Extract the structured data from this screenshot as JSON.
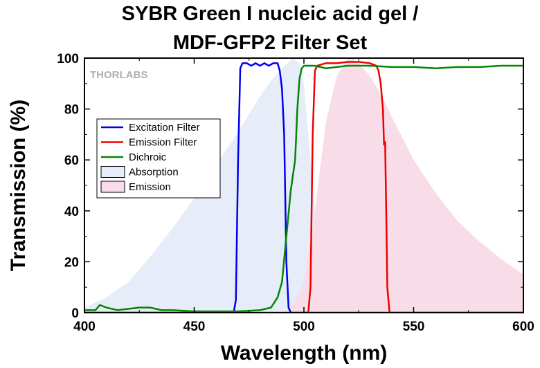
{
  "chart_data": {
    "type": "line",
    "title_line1": "SYBR Green I nucleic acid gel /",
    "title_line2": "MDF-GFP2 Filter Set",
    "xlabel": "Wavelength (nm)",
    "ylabel": "Transmission (%)",
    "xlim": [
      400,
      600
    ],
    "ylim": [
      0,
      100
    ],
    "xticks": [
      400,
      450,
      500,
      550,
      600
    ],
    "yticks": [
      0,
      20,
      40,
      60,
      80,
      100
    ],
    "logo": "THORLABS",
    "legend_position": "left",
    "series": [
      {
        "name": "Excitation Filter",
        "kind": "line",
        "color": "#0000ee",
        "x": [
          400,
          468,
          469,
          470,
          471,
          472,
          474,
          476,
          478,
          480,
          482,
          484,
          486,
          488,
          489,
          490,
          491,
          492,
          493,
          494,
          600
        ],
        "y": [
          0,
          0,
          5,
          60,
          96,
          98,
          98,
          97,
          98,
          97,
          98,
          97,
          98,
          98,
          95,
          88,
          70,
          20,
          2,
          0,
          0
        ]
      },
      {
        "name": "Emission Filter",
        "kind": "line",
        "color": "#ee0000",
        "x": [
          400,
          502,
          503,
          504,
          505,
          506,
          510,
          515,
          520,
          525,
          530,
          533,
          534,
          535,
          536,
          536.5,
          537,
          537.5,
          538,
          539,
          600
        ],
        "y": [
          0,
          0,
          10,
          70,
          95,
          97,
          98,
          98,
          98.5,
          98.5,
          98,
          97,
          95,
          90,
          80,
          66,
          67,
          40,
          10,
          0,
          0
        ]
      },
      {
        "name": "Dichroic",
        "kind": "line",
        "color": "#008800",
        "x": [
          400,
          405,
          407,
          410,
          415,
          420,
          425,
          430,
          435,
          440,
          450,
          460,
          470,
          480,
          485,
          488,
          490,
          492,
          494,
          496,
          497,
          498,
          499,
          500,
          505,
          510,
          520,
          530,
          540,
          550,
          560,
          570,
          580,
          590,
          600
        ],
        "y": [
          1,
          1,
          3,
          2,
          1,
          1.5,
          2,
          2,
          1,
          1,
          0.5,
          0.5,
          0.5,
          1,
          2,
          6,
          12,
          30,
          48,
          60,
          80,
          92,
          96,
          97,
          97,
          96,
          97,
          97,
          96.5,
          96.5,
          96,
          96.5,
          96.5,
          97,
          97
        ]
      },
      {
        "name": "Absorption",
        "kind": "area",
        "color": "#e6ecf8",
        "x": [
          400,
          410,
          420,
          430,
          440,
          450,
          460,
          470,
          480,
          485,
          490,
          495,
          498,
          500,
          502,
          505,
          508,
          510,
          512,
          515,
          520,
          525,
          530
        ],
        "y": [
          2,
          6,
          12,
          22,
          33,
          45,
          58,
          71,
          85,
          91,
          96,
          100,
          98,
          90,
          70,
          40,
          18,
          9,
          5,
          3,
          1,
          0.5,
          0
        ]
      },
      {
        "name": "Emission",
        "kind": "area",
        "color": "#f8dde8",
        "x": [
          490,
          495,
          500,
          505,
          510,
          515,
          520,
          522,
          525,
          530,
          535,
          540,
          550,
          560,
          570,
          580,
          590,
          600
        ],
        "y": [
          0,
          3,
          12,
          40,
          75,
          93,
          100,
          100,
          98,
          93,
          86,
          77,
          60,
          47,
          36,
          28,
          21,
          15
        ]
      }
    ]
  }
}
